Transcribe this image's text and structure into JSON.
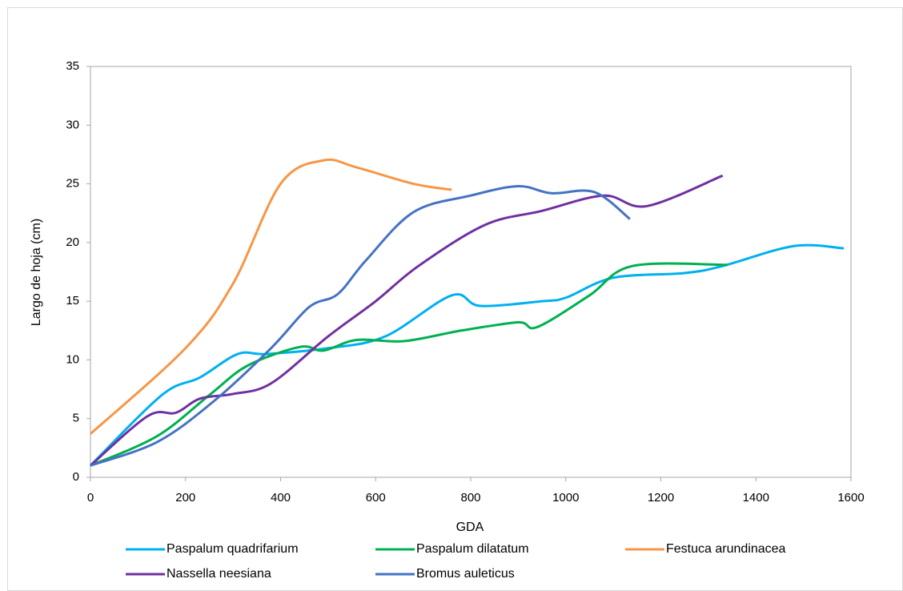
{
  "chart_data": {
    "type": "line",
    "smooth": true,
    "x_label": "GDA",
    "y_label": "Largo de hoja (cm)",
    "xlim": [
      0,
      1600
    ],
    "xticks": [
      0,
      200,
      400,
      600,
      800,
      1000,
      1200,
      1400,
      1600
    ],
    "ylim": [
      0,
      35
    ],
    "yticks": [
      0,
      5,
      10,
      15,
      20,
      25,
      30,
      35
    ],
    "grid": false,
    "legend": "bottom",
    "series": [
      {
        "name": "Paspalum quadrifarium",
        "color": "#00b0f0",
        "x": [
          0,
          150,
          230,
          310,
          370,
          500,
          620,
          760,
          820,
          950,
          1000,
          1100,
          1250,
          1330,
          1480,
          1585
        ],
        "values": [
          1,
          7,
          8.5,
          10.5,
          10.5,
          11,
          12,
          15.5,
          14.6,
          15,
          15.3,
          17,
          17.4,
          18,
          19.7,
          19.5
        ]
      },
      {
        "name": "Paspalum dilatatum",
        "color": "#00b050",
        "x": [
          0,
          140,
          250,
          330,
          440,
          490,
          560,
          660,
          780,
          900,
          940,
          1050,
          1140,
          1340
        ],
        "values": [
          1,
          3.5,
          7,
          9.5,
          11.1,
          10.8,
          11.7,
          11.6,
          12.5,
          13.2,
          12.8,
          15.5,
          18,
          18.1
        ]
      },
      {
        "name": "Festuca arundinacea",
        "color": "#f79646",
        "x": [
          0,
          200,
          300,
          400,
          490,
          560,
          680,
          760
        ],
        "values": [
          3.7,
          11,
          16.5,
          25,
          27,
          26.4,
          25,
          24.5
        ]
      },
      {
        "name": "Nassella neesiana",
        "color": "#7030a0",
        "x": [
          0,
          120,
          180,
          230,
          300,
          380,
          500,
          600,
          690,
          830,
          950,
          1080,
          1170,
          1330
        ],
        "values": [
          1,
          5.2,
          5.5,
          6.7,
          7.1,
          8,
          12,
          15,
          18,
          21.5,
          22.7,
          24,
          23.1,
          25.7
        ]
      },
      {
        "name": "Bromus auleticus",
        "color": "#4472c4",
        "x": [
          0,
          140,
          260,
          380,
          460,
          520,
          580,
          680,
          800,
          900,
          970,
          1060,
          1135
        ],
        "values": [
          1,
          3,
          6.5,
          11,
          14.5,
          15.6,
          18.5,
          22.6,
          24,
          24.8,
          24.2,
          24.3,
          22
        ]
      }
    ]
  }
}
